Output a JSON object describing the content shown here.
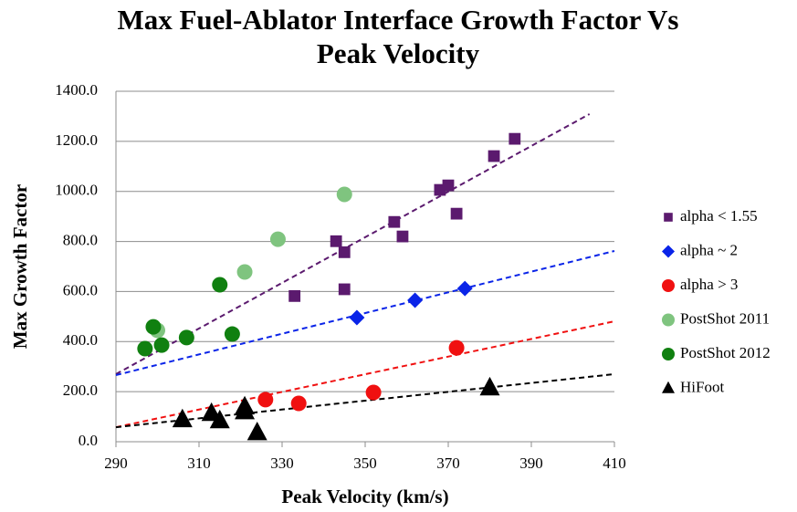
{
  "chart_data": {
    "type": "scatter",
    "title": [
      "Max Fuel-Ablator Interface Growth Factor Vs",
      "Peak Velocity"
    ],
    "x_label": "Peak Velocity (km/s)",
    "y_label": "Max Growth Factor",
    "xlim": [
      290,
      410
    ],
    "xticks": [
      290,
      310,
      330,
      350,
      370,
      390,
      410
    ],
    "ylim": [
      0,
      1400
    ],
    "yticks": [
      {
        "value": 0,
        "label": "0.0"
      },
      {
        "value": 200,
        "label": "200.0"
      },
      {
        "value": 400,
        "label": "400.0"
      },
      {
        "value": 600,
        "label": "600.0"
      },
      {
        "value": 800,
        "label": "800.0"
      },
      {
        "value": 1000,
        "label": "1000.0"
      },
      {
        "value": 1200,
        "label": "1200.0"
      },
      {
        "value": 1400,
        "label": "1400.0"
      }
    ],
    "grid": true,
    "legend": "right",
    "series": [
      {
        "name": "alpha < 1.55",
        "color": "#5b1a6e",
        "marker": "square",
        "x": [
          333,
          345,
          345,
          343,
          357,
          359,
          368,
          370,
          372,
          381,
          386
        ],
        "values": [
          582,
          609,
          757,
          801,
          878,
          820,
          1006,
          1024,
          911,
          1141,
          1210
        ],
        "trendline": {
          "x": [
            290,
            404
          ],
          "values": [
            270,
            1309
          ]
        }
      },
      {
        "name": "alpha ~ 2",
        "color": "#0a24e8",
        "marker": "diamond",
        "x": [
          348,
          362,
          374
        ],
        "values": [
          496,
          565,
          612
        ],
        "trendline": {
          "x": [
            290,
            410
          ],
          "values": [
            266,
            762
          ]
        }
      },
      {
        "name": "alpha > 3",
        "color": "#f01010",
        "marker": "circle",
        "x": [
          326,
          334,
          352,
          372
        ],
        "values": [
          168,
          153,
          197,
          375
        ],
        "trendline": {
          "x": [
            290,
            410
          ],
          "values": [
            58,
            481
          ]
        }
      },
      {
        "name": "PostShot 2011",
        "color": "#7fc47f",
        "marker": "circle",
        "x": [
          300,
          321,
          329,
          345
        ],
        "values": [
          445,
          678,
          809,
          988
        ]
      },
      {
        "name": "PostShot 2012",
        "color": "#108010",
        "marker": "circle",
        "x": [
          297,
          299,
          301,
          307,
          315,
          318
        ],
        "values": [
          372,
          459,
          386,
          416,
          627,
          430
        ]
      },
      {
        "name": "HiFoot",
        "color": "#000000",
        "marker": "triangle",
        "x": [
          306,
          313,
          315,
          321,
          321,
          324,
          380
        ],
        "values": [
          88,
          113,
          84,
          139,
          120,
          36,
          215
        ],
        "trendline": {
          "x": [
            290,
            410
          ],
          "values": [
            58,
            270
          ]
        }
      }
    ]
  }
}
